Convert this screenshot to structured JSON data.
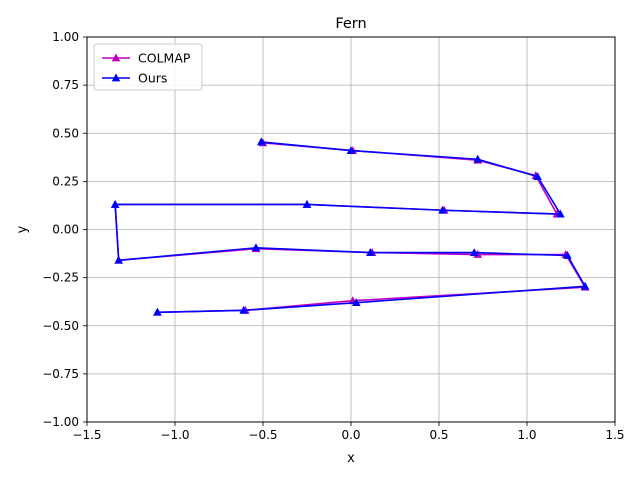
{
  "chart_data": {
    "type": "line",
    "title": "Fern",
    "xlabel": "x",
    "ylabel": "y",
    "xlim": [
      -1.5,
      1.5
    ],
    "ylim": [
      -1.0,
      1.0
    ],
    "xticks": [
      -1.5,
      -1.0,
      -0.5,
      0.0,
      0.5,
      1.0,
      1.5
    ],
    "xtick_labels": [
      "−1.5",
      "−1.0",
      "−0.5",
      "0.0",
      "0.5",
      "1.0",
      "1.5"
    ],
    "yticks": [
      -1.0,
      -0.75,
      -0.5,
      -0.25,
      0.0,
      0.25,
      0.5,
      0.75,
      1.0
    ],
    "ytick_labels": [
      "−1.00",
      "−0.75",
      "−0.50",
      "−0.25",
      "0.00",
      "0.25",
      "0.50",
      "0.75",
      "1.00"
    ],
    "grid": true,
    "legend_position": "top-left",
    "series": [
      {
        "name": "COLMAP",
        "color": "#c000c0",
        "marker": "triangle-up",
        "points": [
          [
            -0.5,
            0.45
          ],
          [
            0.01,
            0.41
          ],
          [
            0.72,
            0.36
          ],
          [
            1.05,
            0.28
          ],
          [
            1.17,
            0.08
          ],
          [
            0.53,
            0.1
          ],
          [
            -0.25,
            0.13
          ],
          [
            -1.34,
            0.13
          ],
          [
            -1.32,
            -0.16
          ],
          [
            -0.54,
            -0.1
          ],
          [
            0.12,
            -0.12
          ],
          [
            0.72,
            -0.13
          ],
          [
            1.22,
            -0.13
          ],
          [
            1.33,
            -0.3
          ],
          [
            0.01,
            -0.37
          ],
          [
            -0.6,
            -0.42
          ],
          [
            -1.1,
            -0.43
          ]
        ]
      },
      {
        "name": "Ours",
        "color": "#0000ff",
        "marker": "triangle-up",
        "points": [
          [
            -0.51,
            0.455
          ],
          [
            0.0,
            0.41
          ],
          [
            0.72,
            0.365
          ],
          [
            1.06,
            0.275
          ],
          [
            1.19,
            0.08
          ],
          [
            0.52,
            0.1
          ],
          [
            -0.25,
            0.13
          ],
          [
            -1.34,
            0.13
          ],
          [
            -1.32,
            -0.16
          ],
          [
            -0.54,
            -0.095
          ],
          [
            0.11,
            -0.12
          ],
          [
            0.7,
            -0.12
          ],
          [
            1.23,
            -0.135
          ],
          [
            1.33,
            -0.295
          ],
          [
            0.03,
            -0.38
          ],
          [
            -0.61,
            -0.42
          ],
          [
            -1.1,
            -0.43
          ]
        ]
      }
    ]
  }
}
